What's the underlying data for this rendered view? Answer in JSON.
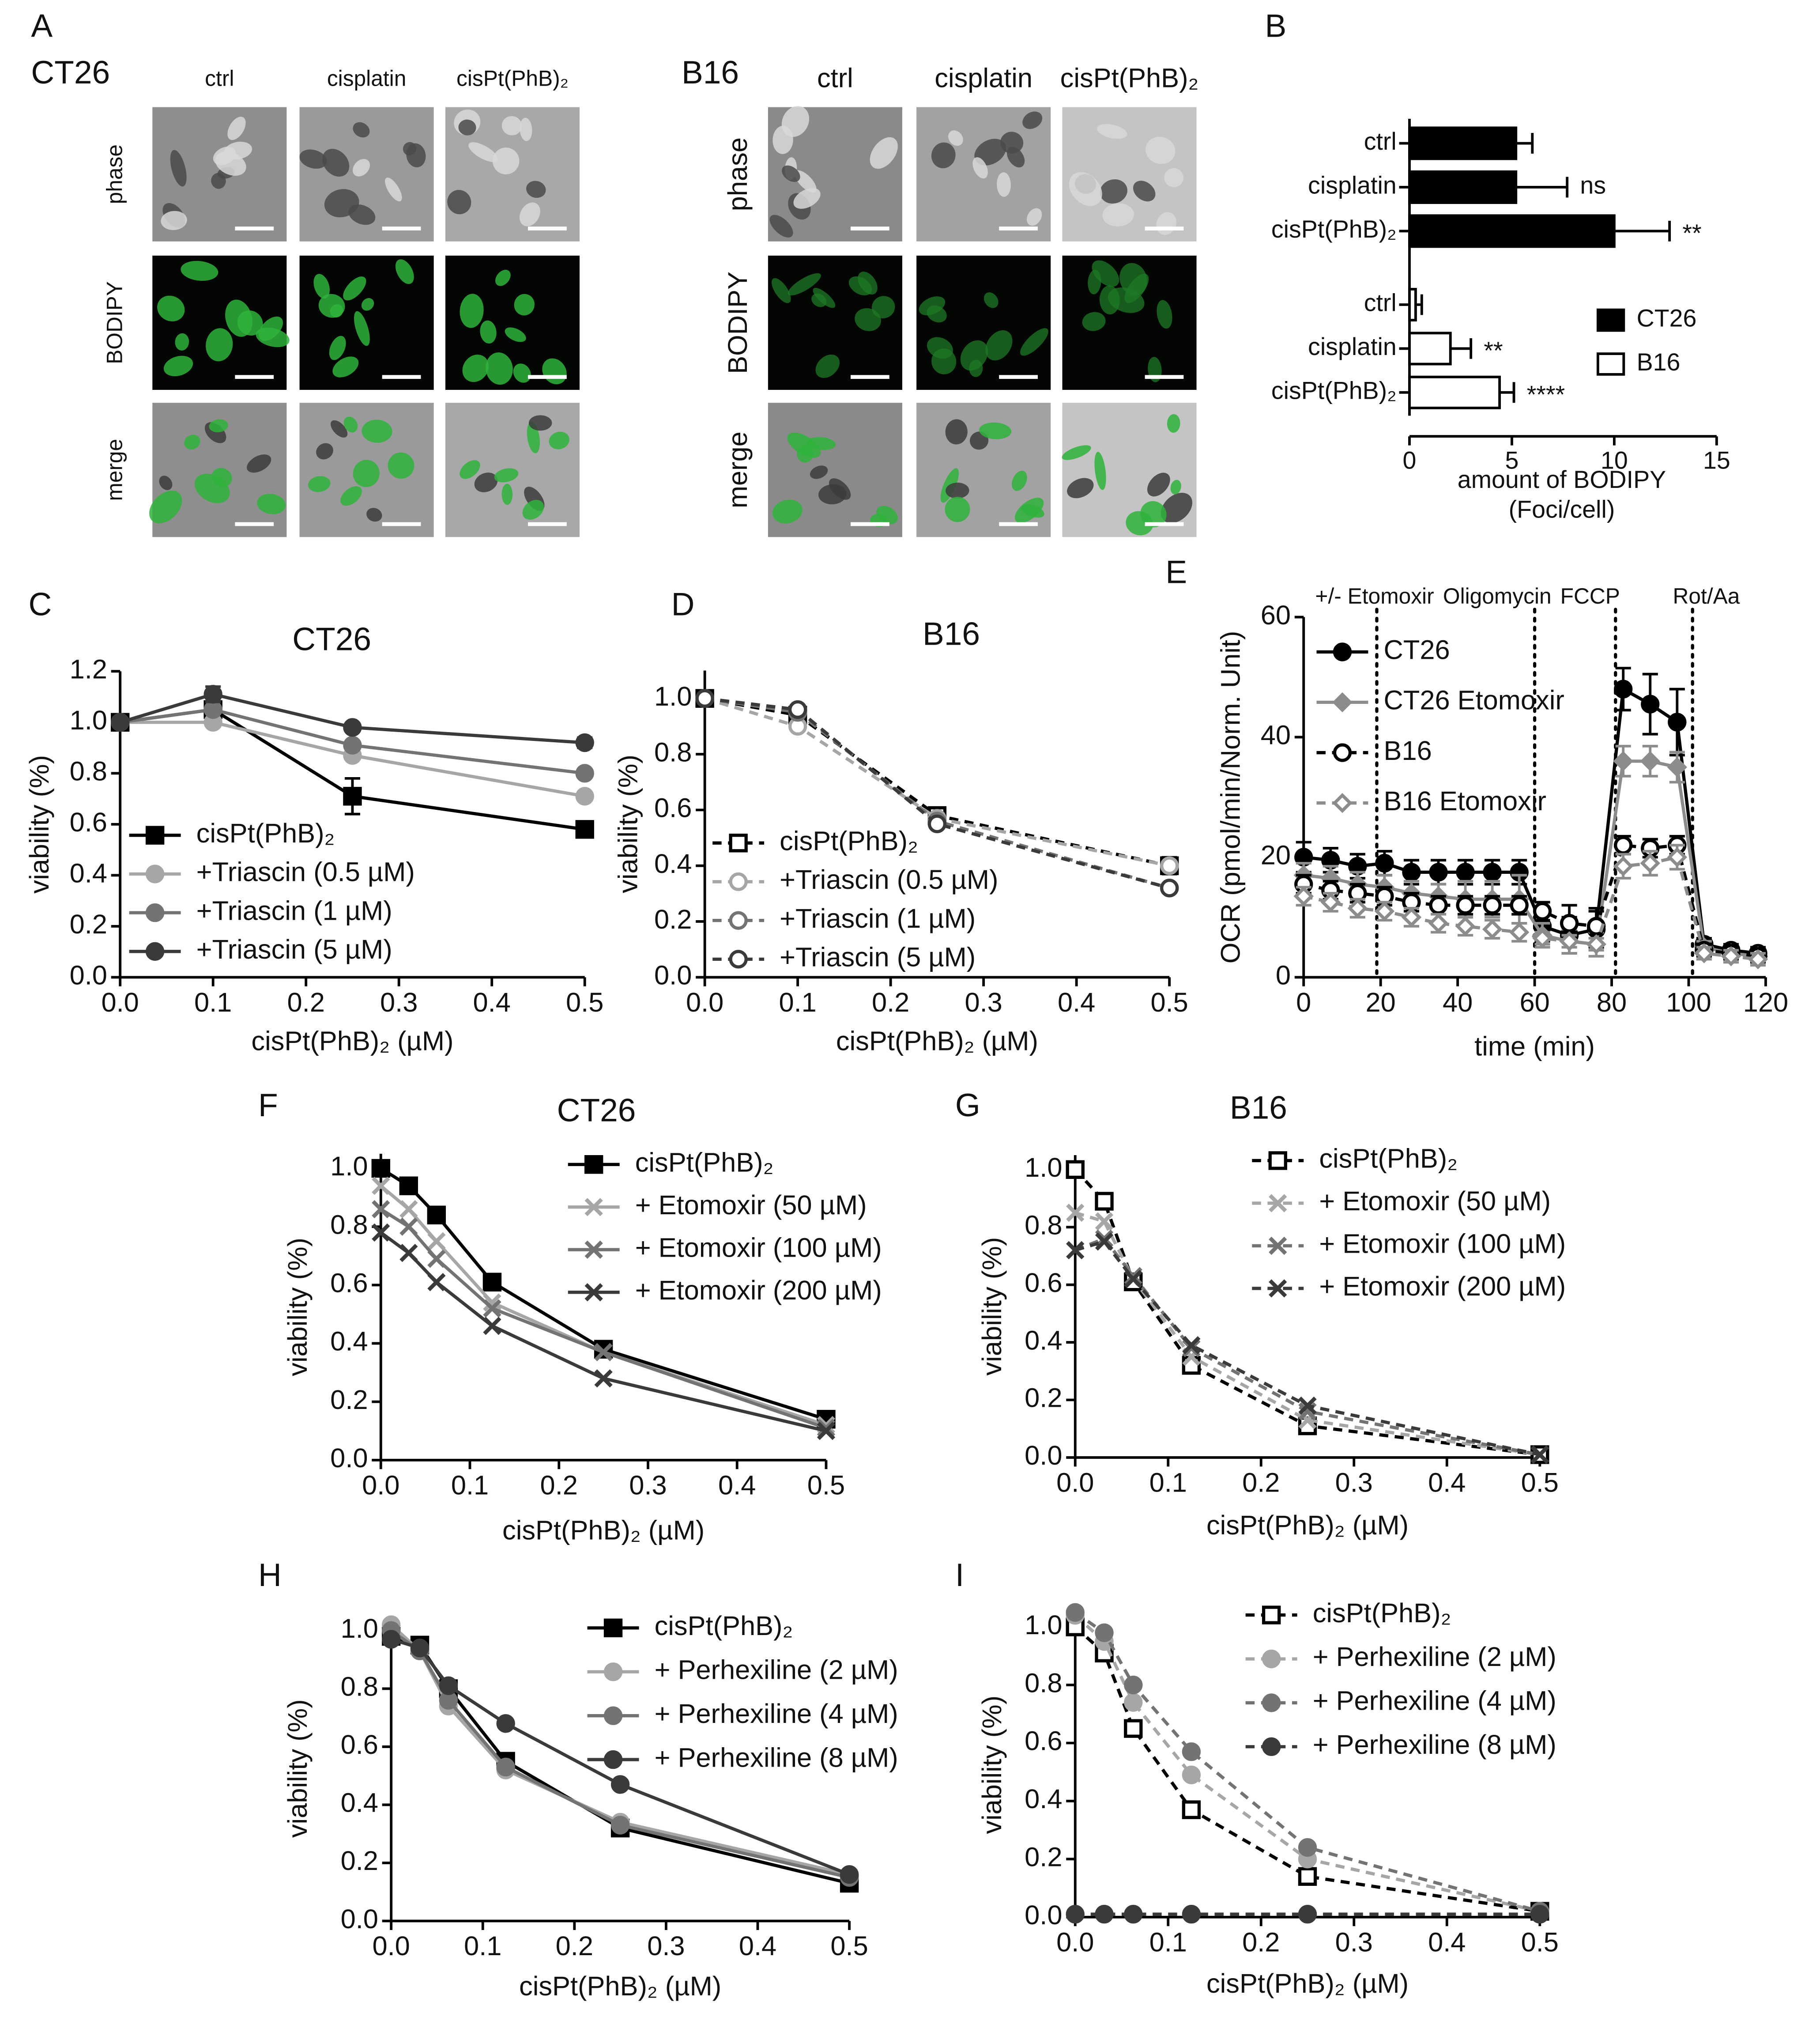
{
  "image_panel": {
    "panel": "A",
    "grids": [
      {
        "title": "CT26",
        "columns": [
          "ctrl",
          "cisplatin",
          "cisPt(PhB)₂"
        ],
        "rows": [
          "phase",
          "BODIPY",
          "merge"
        ]
      },
      {
        "title": "B16",
        "columns": [
          "ctrl",
          "cisplatin",
          "cisPt(PhB)₂"
        ],
        "rows": [
          "phase",
          "BODIPY",
          "merge"
        ]
      }
    ]
  },
  "chart_data": [
    {
      "type": "hbar",
      "panel": "B",
      "xlabel": [
        "amount of BODIPY",
        "(Foci/cell)"
      ],
      "xlim": [
        0,
        15
      ],
      "xticks": [
        0,
        5,
        10,
        15
      ],
      "groups": [
        {
          "name": "CT26",
          "color": "#000000",
          "categories": [
            "ctrl",
            "cisplatin",
            "cisPt(PhB)₂"
          ],
          "values": [
            5.2,
            5.2,
            10
          ],
          "errors": [
            0.8,
            2.5,
            2.7
          ],
          "annotations": [
            null,
            "ns",
            "**"
          ]
        },
        {
          "name": "B16",
          "color": "#ffffff",
          "categories": [
            "ctrl",
            "cisplatin",
            "cisPt(PhB)₂"
          ],
          "values": [
            0.3,
            2.0,
            4.4
          ],
          "errors": [
            0.3,
            1.0,
            0.7
          ],
          "annotations": [
            null,
            "**",
            "****"
          ]
        }
      ]
    },
    {
      "type": "line",
      "panel": "C",
      "title": "CT26",
      "xlabel": "cisPt(PhB)₂ (µM)",
      "ylabel": "viability (%)",
      "x": [
        0,
        0.1,
        0.25,
        0.5
      ],
      "xlim": [
        0,
        0.5
      ],
      "ylim": [
        0,
        1.2
      ],
      "xticks": [
        {
          "value": 0,
          "label": "0.0"
        },
        0.1,
        0.2,
        0.3,
        0.4,
        0.5
      ],
      "yticks": [
        {
          "value": 0,
          "label": "0.0"
        },
        0.2,
        0.4,
        0.6,
        0.8,
        {
          "value": 1,
          "label": "1.0"
        },
        1.2
      ],
      "series": [
        {
          "name": "cisPt(PhB)₂",
          "color": "#000000",
          "marker": "square",
          "filled": true,
          "dashed": false,
          "values": [
            1.0,
            1.05,
            0.71,
            0.58
          ],
          "errors": [
            0,
            0.02,
            0.07,
            0.02
          ]
        },
        {
          "name": "+Triascin (0.5 µM)",
          "color": "#a6a6a6",
          "marker": "circle",
          "filled": true,
          "dashed": false,
          "values": [
            1.0,
            1.0,
            0.87,
            0.71
          ]
        },
        {
          "name": "+Triascin (1 µM)",
          "color": "#737373",
          "marker": "circle",
          "filled": true,
          "dashed": false,
          "values": [
            1.0,
            1.05,
            0.91,
            0.8
          ]
        },
        {
          "name": "+Triascin (5 µM)",
          "color": "#3a3a3a",
          "marker": "circle",
          "filled": true,
          "dashed": false,
          "values": [
            1.0,
            1.11,
            0.98,
            0.92
          ],
          "errors": [
            0,
            0.03,
            0.01,
            0.02
          ]
        }
      ]
    },
    {
      "type": "line",
      "panel": "D",
      "title": "B16",
      "xlabel": "cisPt(PhB)₂ (µM)",
      "ylabel": "viability (%)",
      "x": [
        0,
        0.1,
        0.25,
        0.5
      ],
      "xlim": [
        0,
        0.5
      ],
      "ylim": [
        0,
        1.1
      ],
      "xticks": [
        {
          "value": 0,
          "label": "0.0"
        },
        0.1,
        0.2,
        0.3,
        0.4,
        0.5
      ],
      "yticks": [
        {
          "value": 0,
          "label": "0.0"
        },
        0.2,
        0.4,
        0.6,
        0.8,
        {
          "value": 1,
          "label": "1.0"
        }
      ],
      "series": [
        {
          "name": "cisPt(PhB)₂",
          "color": "#000000",
          "marker": "square",
          "filled": false,
          "dashed": true,
          "values": [
            1.0,
            0.94,
            0.58,
            0.4
          ],
          "errors": [
            0,
            0.02,
            0.02,
            0.03
          ]
        },
        {
          "name": "+Triascin (0.5 µM)",
          "color": "#a6a6a6",
          "marker": "circle",
          "filled": false,
          "dashed": true,
          "values": [
            1.0,
            0.9,
            0.57,
            0.4
          ]
        },
        {
          "name": "+Triascin (1 µM)",
          "color": "#737373",
          "marker": "circle",
          "filled": false,
          "dashed": true,
          "values": [
            1.0,
            0.95,
            0.56,
            0.32
          ]
        },
        {
          "name": "+Triascin (5 µM)",
          "color": "#3a3a3a",
          "marker": "circle",
          "filled": false,
          "dashed": true,
          "values": [
            1.0,
            0.96,
            0.55,
            0.32
          ]
        }
      ]
    },
    {
      "type": "line",
      "panel": "E",
      "xlabel": "time (min)",
      "ylabel": "OCR (pmol/min/Norm. Unit)",
      "x": [
        0,
        7,
        14,
        21,
        28,
        35,
        42,
        49,
        56,
        62,
        69,
        76,
        83,
        90,
        97,
        104,
        111,
        118
      ],
      "xlim": [
        0,
        120
      ],
      "ylim": [
        0,
        60
      ],
      "xticks": [
        0,
        20,
        40,
        60,
        80,
        100,
        120
      ],
      "yticks": [
        0,
        20,
        40,
        60
      ],
      "events": [
        {
          "x": 19,
          "label": "+/- Etomoxir"
        },
        {
          "x": 60,
          "label": "Oligomycin"
        },
        {
          "x": 81,
          "label": "FCCP"
        },
        {
          "x": 101,
          "label": "Rot/Aa"
        }
      ],
      "series": [
        {
          "name": "CT26",
          "color": "#000000",
          "marker": "circle",
          "filled": true,
          "dashed": false,
          "values": [
            20,
            19.5,
            18.5,
            19,
            17.5,
            17.5,
            17.5,
            17.5,
            17.5,
            8.5,
            7,
            8,
            48,
            45.5,
            42.5,
            5.5,
            4.5,
            4
          ],
          "errors": [
            2.5,
            2,
            2,
            2,
            2,
            2,
            2,
            2,
            2,
            2.5,
            3,
            3,
            3.5,
            5,
            5.5,
            1,
            1,
            1
          ]
        },
        {
          "name": "CT26 Etomoxir",
          "color": "#8c8c8c",
          "marker": "diamond",
          "filled": true,
          "dashed": false,
          "values": [
            17,
            16.5,
            15.5,
            15,
            14,
            13.5,
            13,
            13,
            13,
            7,
            6,
            5.5,
            36,
            36,
            35,
            5,
            4,
            3.5
          ],
          "errors": [
            2,
            2,
            2,
            2,
            2,
            2,
            3,
            3,
            4,
            2,
            2,
            2,
            2.5,
            2.5,
            2.5,
            1,
            1,
            1
          ]
        },
        {
          "name": "B16",
          "color": "#000000",
          "marker": "circle",
          "filled": false,
          "dashed": true,
          "values": [
            15.5,
            14.5,
            14,
            13.5,
            12.5,
            12,
            12,
            12,
            12,
            11,
            9,
            8.5,
            22,
            21.5,
            22,
            4.5,
            4,
            3.5
          ],
          "errors": [
            1.5,
            1.5,
            1.5,
            1.5,
            1.5,
            1.5,
            1.5,
            1.5,
            1.5,
            1.5,
            3,
            3,
            1.5,
            1.5,
            1.5,
            1,
            1,
            1
          ]
        },
        {
          "name": "B16 Etomoxir",
          "color": "#8c8c8c",
          "marker": "diamond",
          "filled": false,
          "dashed": true,
          "values": [
            13.5,
            12.5,
            11.5,
            11,
            10,
            9,
            8.5,
            8,
            7.5,
            6.5,
            6,
            5.5,
            18.5,
            19,
            20,
            4,
            3.5,
            3
          ],
          "errors": [
            1.5,
            1.5,
            1.5,
            1.5,
            1.5,
            1.5,
            1.5,
            1.5,
            1.5,
            1,
            1,
            1,
            2,
            2,
            2,
            1,
            1,
            1
          ]
        }
      ]
    },
    {
      "type": "line",
      "panel": "F",
      "title": "CT26",
      "xlabel": "cisPt(PhB)₂ (µM)",
      "ylabel": "viability (%)",
      "x": [
        0,
        0.03125,
        0.0625,
        0.125,
        0.25,
        0.5
      ],
      "xlim": [
        0,
        0.5
      ],
      "ylim": [
        0,
        1.05
      ],
      "xticks": [
        {
          "value": 0,
          "label": "0.0"
        },
        0.1,
        0.2,
        0.3,
        0.4,
        0.5
      ],
      "yticks": [
        {
          "value": 0,
          "label": "0.0"
        },
        0.2,
        0.4,
        0.6,
        0.8,
        {
          "value": 1,
          "label": "1.0"
        }
      ],
      "series": [
        {
          "name": "cisPt(PhB)₂",
          "color": "#000000",
          "marker": "square",
          "filled": true,
          "dashed": false,
          "values": [
            1.0,
            0.94,
            0.84,
            0.61,
            0.38,
            0.14
          ]
        },
        {
          "name": "+ Etomoxir (50 µM)",
          "color": "#a6a6a6",
          "marker": "x",
          "filled": true,
          "dashed": false,
          "values": [
            0.94,
            0.86,
            0.75,
            0.54,
            0.37,
            0.12
          ]
        },
        {
          "name": "+ Etomoxir (100 µM)",
          "color": "#737373",
          "marker": "x",
          "filled": true,
          "dashed": false,
          "values": [
            0.86,
            0.8,
            0.69,
            0.52,
            0.37,
            0.11
          ]
        },
        {
          "name": "+ Etomoxir (200 µM)",
          "color": "#3a3a3a",
          "marker": "x",
          "filled": true,
          "dashed": false,
          "values": [
            0.78,
            0.71,
            0.61,
            0.46,
            0.28,
            0.1
          ]
        }
      ]
    },
    {
      "type": "line",
      "panel": "G",
      "title": "B16",
      "xlabel": "cisPt(PhB)₂ (µM)",
      "ylabel": "viability (%)",
      "x": [
        0,
        0.03125,
        0.0625,
        0.125,
        0.25,
        0.5
      ],
      "xlim": [
        0,
        0.5
      ],
      "ylim": [
        0,
        1.05
      ],
      "xticks": [
        {
          "value": 0,
          "label": "0.0"
        },
        0.1,
        0.2,
        0.3,
        0.4,
        0.5
      ],
      "yticks": [
        {
          "value": 0,
          "label": "0.0"
        },
        0.2,
        0.4,
        0.6,
        0.8,
        {
          "value": 1,
          "label": "1.0"
        }
      ],
      "series": [
        {
          "name": "cisPt(PhB)₂",
          "color": "#000000",
          "marker": "square",
          "filled": false,
          "dashed": true,
          "values": [
            1.0,
            0.89,
            0.61,
            0.32,
            0.11,
            0.01
          ]
        },
        {
          "name": "+ Etomoxir (50 µM)",
          "color": "#a6a6a6",
          "marker": "x",
          "filled": true,
          "dashed": true,
          "values": [
            0.85,
            0.82,
            0.62,
            0.35,
            0.13,
            0.01
          ]
        },
        {
          "name": "+ Etomoxir (100 µM)",
          "color": "#737373",
          "marker": "x",
          "filled": true,
          "dashed": true,
          "values": [
            0.72,
            0.76,
            0.63,
            0.38,
            0.16,
            0.01
          ]
        },
        {
          "name": "+ Etomoxir (200 µM)",
          "color": "#3a3a3a",
          "marker": "x",
          "filled": true,
          "dashed": true,
          "values": [
            0.72,
            0.75,
            0.62,
            0.39,
            0.18,
            0.01
          ]
        }
      ]
    },
    {
      "type": "line",
      "panel": "H",
      "xlabel": "cisPt(PhB)₂ (µM)",
      "ylabel": "viability (%)",
      "x": [
        0,
        0.03125,
        0.0625,
        0.125,
        0.25,
        0.5
      ],
      "xlim": [
        0,
        0.5
      ],
      "ylim": [
        0,
        1.05
      ],
      "xticks": [
        {
          "value": 0,
          "label": "0.0"
        },
        0.1,
        0.2,
        0.3,
        0.4,
        0.5
      ],
      "yticks": [
        {
          "value": 0,
          "label": "0.0"
        },
        0.2,
        0.4,
        0.6,
        0.8,
        {
          "value": 1,
          "label": "1.0"
        }
      ],
      "series": [
        {
          "name": "cisPt(PhB)₂",
          "color": "#000000",
          "marker": "square",
          "filled": true,
          "dashed": false,
          "values": [
            0.98,
            0.95,
            0.8,
            0.55,
            0.32,
            0.13
          ]
        },
        {
          "name": "+ Perhexiline (2 µM)",
          "color": "#a6a6a6",
          "marker": "circle",
          "filled": true,
          "dashed": false,
          "values": [
            1.02,
            0.93,
            0.74,
            0.52,
            0.34,
            0.16
          ]
        },
        {
          "name": "+ Perhexiline (4 µM)",
          "color": "#737373",
          "marker": "circle",
          "filled": true,
          "dashed": false,
          "values": [
            1.0,
            0.93,
            0.76,
            0.53,
            0.33,
            0.15
          ]
        },
        {
          "name": "+ Perhexiline (8 µM)",
          "color": "#3a3a3a",
          "marker": "circle",
          "filled": true,
          "dashed": false,
          "values": [
            0.97,
            0.94,
            0.81,
            0.68,
            0.47,
            0.16
          ]
        }
      ]
    },
    {
      "type": "line",
      "panel": "I",
      "xlabel": "cisPt(PhB)₂ (µM)",
      "ylabel": "viability (%)",
      "x": [
        0,
        0.03125,
        0.0625,
        0.125,
        0.25,
        0.5
      ],
      "xlim": [
        0,
        0.5
      ],
      "ylim": [
        0,
        1.05
      ],
      "xticks": [
        {
          "value": 0,
          "label": "0.0"
        },
        0.1,
        0.2,
        0.3,
        0.4,
        0.5
      ],
      "yticks": [
        {
          "value": 0,
          "label": "0.0"
        },
        0.2,
        0.4,
        0.6,
        0.8,
        {
          "value": 1,
          "label": "1.0"
        }
      ],
      "series": [
        {
          "name": "cisPt(PhB)₂",
          "color": "#000000",
          "marker": "square",
          "filled": false,
          "dashed": true,
          "values": [
            1.0,
            0.91,
            0.65,
            0.37,
            0.14,
            0.02
          ]
        },
        {
          "name": "+ Perhexiline (2 µM)",
          "color": "#a6a6a6",
          "marker": "circle",
          "filled": true,
          "dashed": true,
          "values": [
            1.04,
            0.95,
            0.74,
            0.49,
            0.2,
            0.02
          ]
        },
        {
          "name": "+ Perhexiline (4 µM)",
          "color": "#737373",
          "marker": "circle",
          "filled": true,
          "dashed": true,
          "values": [
            1.05,
            0.98,
            0.8,
            0.57,
            0.24,
            0.02
          ]
        },
        {
          "name": "+ Perhexiline (8 µM)",
          "color": "#3a3a3a",
          "marker": "circle",
          "filled": true,
          "dashed": true,
          "values": [
            0.01,
            0.01,
            0.01,
            0.01,
            0.01,
            0.01
          ]
        }
      ]
    }
  ]
}
